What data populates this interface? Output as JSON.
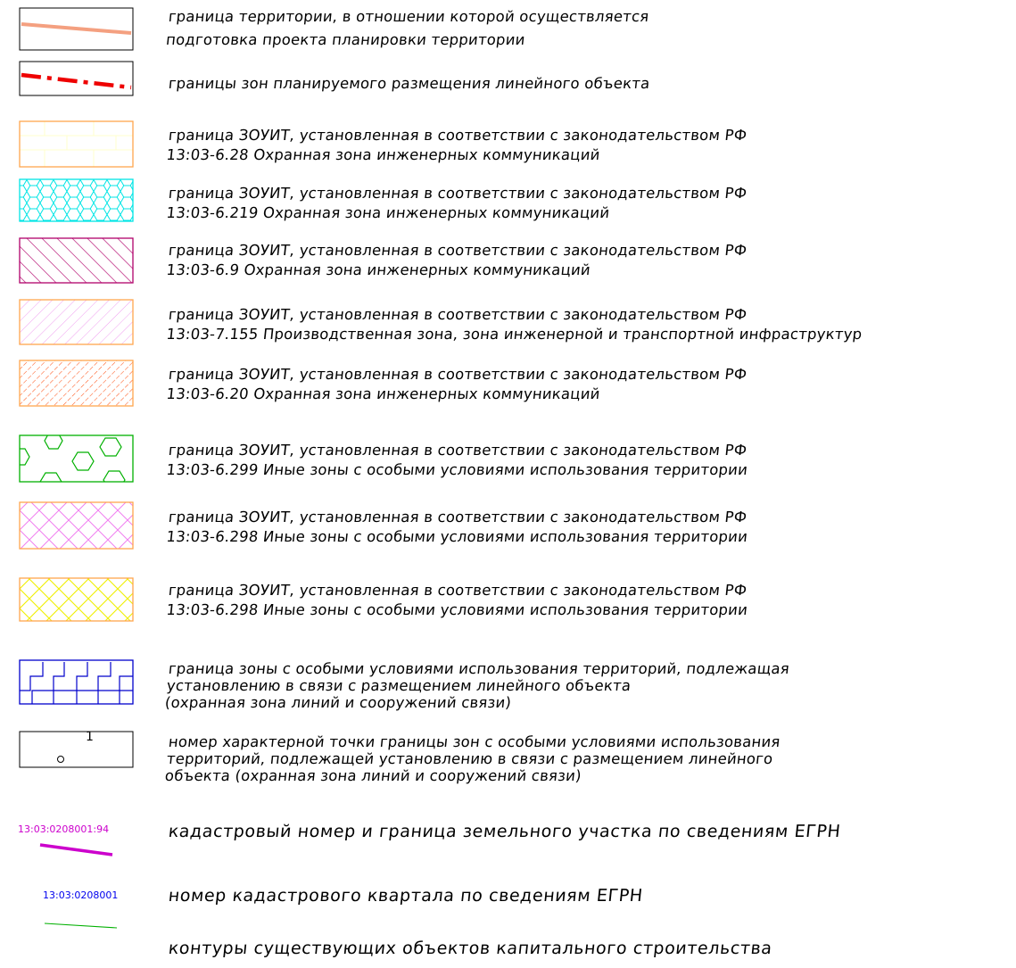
{
  "legend": [
    {
      "lines": [
        "граница территории, в отношении которой осуществляется",
        "подготовка проекта планировки территории"
      ]
    },
    {
      "lines": [
        "границы зон планируемого размещения линейного объекта"
      ]
    },
    {
      "lines": [
        "граница ЗОУИТ, установленная в соответствии с законодательством РФ",
        "13:03-6.28 Охранная зона инженерных коммуникаций"
      ]
    },
    {
      "lines": [
        "граница ЗОУИТ, установленная в соответствии с законодательством РФ",
        "13:03-6.219 Охранная зона инженерных коммуникаций"
      ]
    },
    {
      "lines": [
        "граница ЗОУИТ, установленная в соответствии с законодательством РФ",
        "13:03-6.9 Охранная зона инженерных коммуникаций"
      ]
    },
    {
      "lines": [
        "граница ЗОУИТ, установленная в соответствии с законодательством РФ",
        "13:03-7.155 Производственная зона, зона инженерной и транспортной инфраструктур"
      ]
    },
    {
      "lines": [
        "граница ЗОУИТ, установленная в соответствии с законодательством РФ",
        "13:03-6.20 Охранная зона инженерных коммуникаций"
      ]
    },
    {
      "lines": [
        "граница ЗОУИТ, установленная в соответствии с законодательством РФ",
        "13:03-6.299 Иные зоны с особыми условиями использования территории"
      ]
    },
    {
      "lines": [
        "граница ЗОУИТ, установленная в соответствии с законодательством РФ",
        "13:03-6.298 Иные зоны с особыми условиями использования территории"
      ]
    },
    {
      "lines": [
        "граница ЗОУИТ, установленная в соответствии с законодательством РФ",
        "13:03-6.298 Иные зоны с особыми условиями использования территории"
      ]
    },
    {
      "lines": [
        "граница зоны с особыми условиями использования территорий, подлежащая",
        "установлению в связи с размещением линейного объекта",
        "(охранная зона линий и сооружений связи)"
      ]
    },
    {
      "lines": [
        "номер характерной точки границы зон с особыми условиями использования",
        "территорий, подлежащей установлению в связи с размещением линейного",
        "объекта (охранная зона линий и сооружений связи)"
      ]
    },
    {
      "lines": [
        "кадастровый номер и граница земельного участка по сведениям ЕГРН"
      ]
    },
    {
      "lines": [
        "номер кадастрового квартала по сведениям ЕГРН"
      ]
    },
    {
      "lines": [
        "контуры существующих объектов капитального строительства"
      ]
    }
  ],
  "symbols": {
    "point_number": "1",
    "parcel_number": "13:03:0208001:94",
    "quarter_number": "13:03:0208001"
  },
  "colors": {
    "territory_boundary": "#f4a080",
    "linear_object_zone": "#ee0000",
    "zone_6_28": "#ffa64d",
    "zone_6_219": "#00e5e5",
    "zone_6_9": "#b0006a",
    "zone_7_155": "#f0a0f0",
    "zone_6_20": "#ff5a20",
    "zone_6_299": "#00b000",
    "zone_6_298_pink": "#f080f0",
    "zone_6_298_yellow": "#f0f000",
    "comm_zone": "#0000cc",
    "parcel": "#cc00cc",
    "quarter": "#0000ee",
    "building": "#00b000"
  }
}
